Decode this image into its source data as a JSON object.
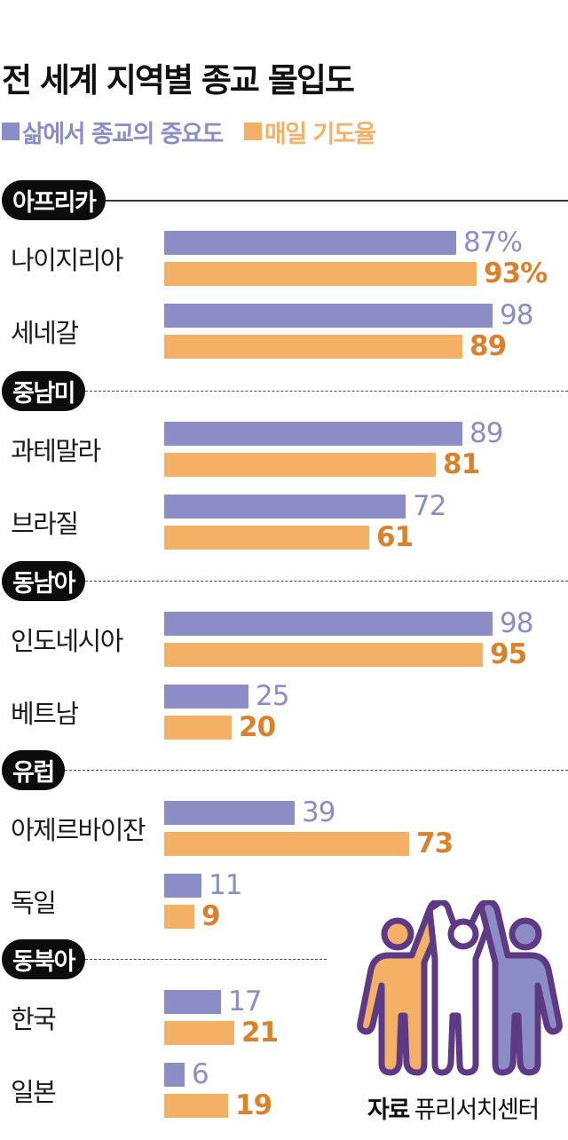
{
  "title": "전 세계 지역별 종교 몰입도",
  "legend": {
    "importance": "삶에서 종교의 중요도",
    "prayer": "매일 기도율"
  },
  "colors": {
    "importance": "#8c8dc6",
    "prayer": "#f4b064",
    "prayer_label": "#d9822b",
    "pill": "#0c0c0c",
    "illustration_outline": "#5e3a85"
  },
  "regions": [
    {
      "name": "아프리카",
      "countries": [
        {
          "name": "나이지리아",
          "importance": 87,
          "importance_label": "87%",
          "prayer": 93,
          "prayer_label": "93%"
        },
        {
          "name": "세네갈",
          "importance": 98,
          "importance_label": "98",
          "prayer": 89,
          "prayer_label": "89"
        }
      ]
    },
    {
      "name": "중남미",
      "countries": [
        {
          "name": "과테말라",
          "importance": 89,
          "importance_label": "89",
          "prayer": 81,
          "prayer_label": "81"
        },
        {
          "name": "브라질",
          "importance": 72,
          "importance_label": "72",
          "prayer": 61,
          "prayer_label": "61"
        }
      ]
    },
    {
      "name": "동남아",
      "countries": [
        {
          "name": "인도네시아",
          "importance": 98,
          "importance_label": "98",
          "prayer": 95,
          "prayer_label": "95"
        },
        {
          "name": "베트남",
          "importance": 25,
          "importance_label": "25",
          "prayer": 20,
          "prayer_label": "20"
        }
      ]
    },
    {
      "name": "유럽",
      "countries": [
        {
          "name": "아제르바이잔",
          "importance": 39,
          "importance_label": "39",
          "prayer": 73,
          "prayer_label": "73"
        },
        {
          "name": "독일",
          "importance": 11,
          "importance_label": "11",
          "prayer": 9,
          "prayer_label": "9"
        }
      ]
    },
    {
      "name": "동북아",
      "countries": [
        {
          "name": "한국",
          "importance": 17,
          "importance_label": "17",
          "prayer": 21,
          "prayer_label": "21"
        },
        {
          "name": "일본",
          "importance": 6,
          "importance_label": "6",
          "prayer": 19,
          "prayer_label": "19"
        }
      ]
    }
  ],
  "source": {
    "label": "자료",
    "value": "퓨리서치센터"
  },
  "illustration": "three-people-raising-hands-icon",
  "chart_data": {
    "type": "bar",
    "orientation": "horizontal",
    "title": "전 세계 지역별 종교 몰입도",
    "xlabel": "",
    "ylabel": "",
    "unit": "%",
    "xlim": [
      0,
      100
    ],
    "grid": false,
    "legend_position": "top-left",
    "groups": [
      "아프리카",
      "아프리카",
      "중남미",
      "중남미",
      "동남아",
      "동남아",
      "유럽",
      "유럽",
      "동북아",
      "동북아"
    ],
    "categories": [
      "나이지리아",
      "세네갈",
      "과테말라",
      "브라질",
      "인도네시아",
      "베트남",
      "아제르바이잔",
      "독일",
      "한국",
      "일본"
    ],
    "series": [
      {
        "name": "삶에서 종교의 중요도",
        "color": "#8c8dc6",
        "values": [
          87,
          98,
          89,
          72,
          98,
          25,
          39,
          11,
          17,
          6
        ]
      },
      {
        "name": "매일 기도율",
        "color": "#f4b064",
        "values": [
          93,
          89,
          81,
          61,
          95,
          20,
          73,
          9,
          21,
          19
        ]
      }
    ],
    "annotations": [
      "자료 퓨리서치센터"
    ]
  }
}
